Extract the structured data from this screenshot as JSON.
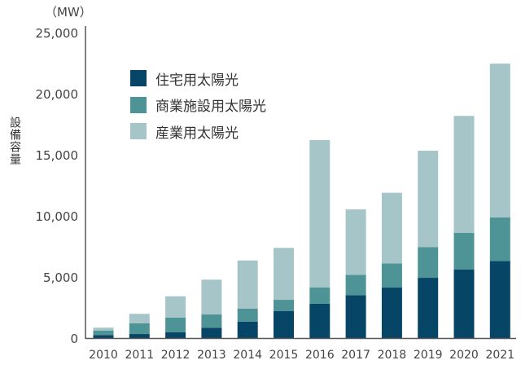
{
  "chart_data": {
    "type": "bar",
    "stacked": true,
    "title": "",
    "unit_label": "（MW）",
    "xlabel": "",
    "ylabel": "設備容量",
    "ylim": [
      0,
      25000
    ],
    "yticks": [
      0,
      5000,
      10000,
      15000,
      20000,
      25000
    ],
    "ytick_labels": [
      "0",
      "5,000",
      "10,000",
      "15,000",
      "20,000",
      "25,000"
    ],
    "grid": false,
    "legend_position": "top-left",
    "categories": [
      "2010",
      "2011",
      "2012",
      "2013",
      "2014",
      "2015",
      "2016",
      "2017",
      "2018",
      "2019",
      "2020",
      "2021"
    ],
    "series": [
      {
        "name": "住宅用太陽光",
        "color": "#064566",
        "values": [
          250,
          330,
          470,
          850,
          1350,
          2220,
          2820,
          3510,
          4130,
          4930,
          5620,
          6310
        ]
      },
      {
        "name": "商業施設用太陽光",
        "color": "#4e9396",
        "values": [
          370,
          870,
          1200,
          1080,
          1050,
          910,
          1330,
          1670,
          1980,
          2520,
          2980,
          3560
        ]
      },
      {
        "name": "産業用太陽光",
        "color": "#a6c5c8",
        "values": [
          230,
          780,
          1750,
          2850,
          3950,
          4250,
          12050,
          5350,
          5780,
          7880,
          9580,
          12590
        ]
      }
    ]
  }
}
